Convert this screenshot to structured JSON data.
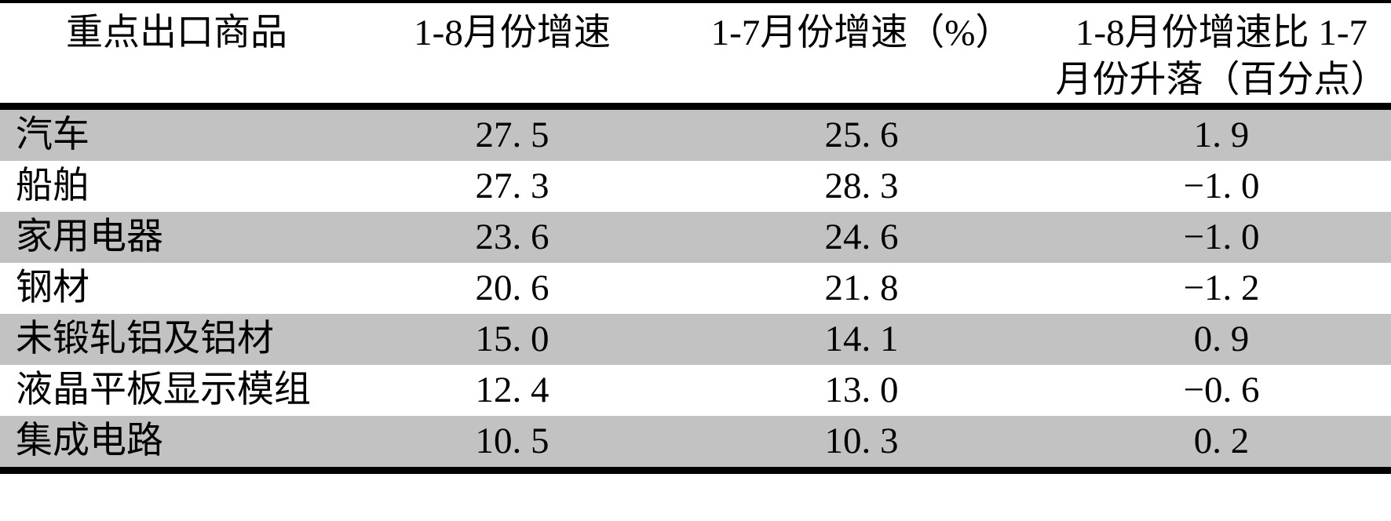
{
  "colors": {
    "row_shade": "#c2c2c2",
    "row_plain": "#ffffff",
    "rule": "#000000",
    "text": "#000000"
  },
  "table": {
    "columns": [
      {
        "label": "重点出口商品"
      },
      {
        "label": "1-8月份增速"
      },
      {
        "label": "1-7月份增速（%）"
      },
      {
        "label": "1-8月份增速比 1-7月份升落（百分点）",
        "line1": "1-8月份增速比 1-7",
        "line2": "月份升落（百分点）"
      }
    ],
    "rows": [
      {
        "name": "汽车",
        "growth_1_8": "27. 5",
        "growth_1_7": "25. 6",
        "change": "1. 9"
      },
      {
        "name": "船舶",
        "growth_1_8": "27. 3",
        "growth_1_7": "28. 3",
        "change": "−1. 0"
      },
      {
        "name": "家用电器",
        "growth_1_8": "23. 6",
        "growth_1_7": "24. 6",
        "change": "−1. 0"
      },
      {
        "name": "钢材",
        "growth_1_8": "20. 6",
        "growth_1_7": "21. 8",
        "change": "−1. 2"
      },
      {
        "name": "未锻轧铝及铝材",
        "growth_1_8": "15. 0",
        "growth_1_7": "14. 1",
        "change": "0. 9"
      },
      {
        "name": "液晶平板显示模组",
        "growth_1_8": "12. 4",
        "growth_1_7": "13. 0",
        "change": "−0. 6"
      },
      {
        "name": "集成电路",
        "growth_1_8": "10. 5",
        "growth_1_7": "10. 3",
        "change": "0. 2"
      }
    ]
  },
  "chart_data": {
    "type": "table",
    "columns": [
      "重点出口商品",
      "1-8月份增速",
      "1-7月份增速（%）",
      "1-8月份增速比1-7月份升落（百分点）"
    ],
    "rows": [
      [
        "汽车",
        27.5,
        25.6,
        1.9
      ],
      [
        "船舶",
        27.3,
        28.3,
        -1.0
      ],
      [
        "家用电器",
        23.6,
        24.6,
        -1.0
      ],
      [
        "钢材",
        20.6,
        21.8,
        -1.2
      ],
      [
        "未锻轧铝及铝材",
        15.0,
        14.1,
        0.9
      ],
      [
        "液晶平板显示模组",
        12.4,
        13.0,
        -0.6
      ],
      [
        "集成电路",
        10.5,
        10.3,
        0.2
      ]
    ]
  }
}
